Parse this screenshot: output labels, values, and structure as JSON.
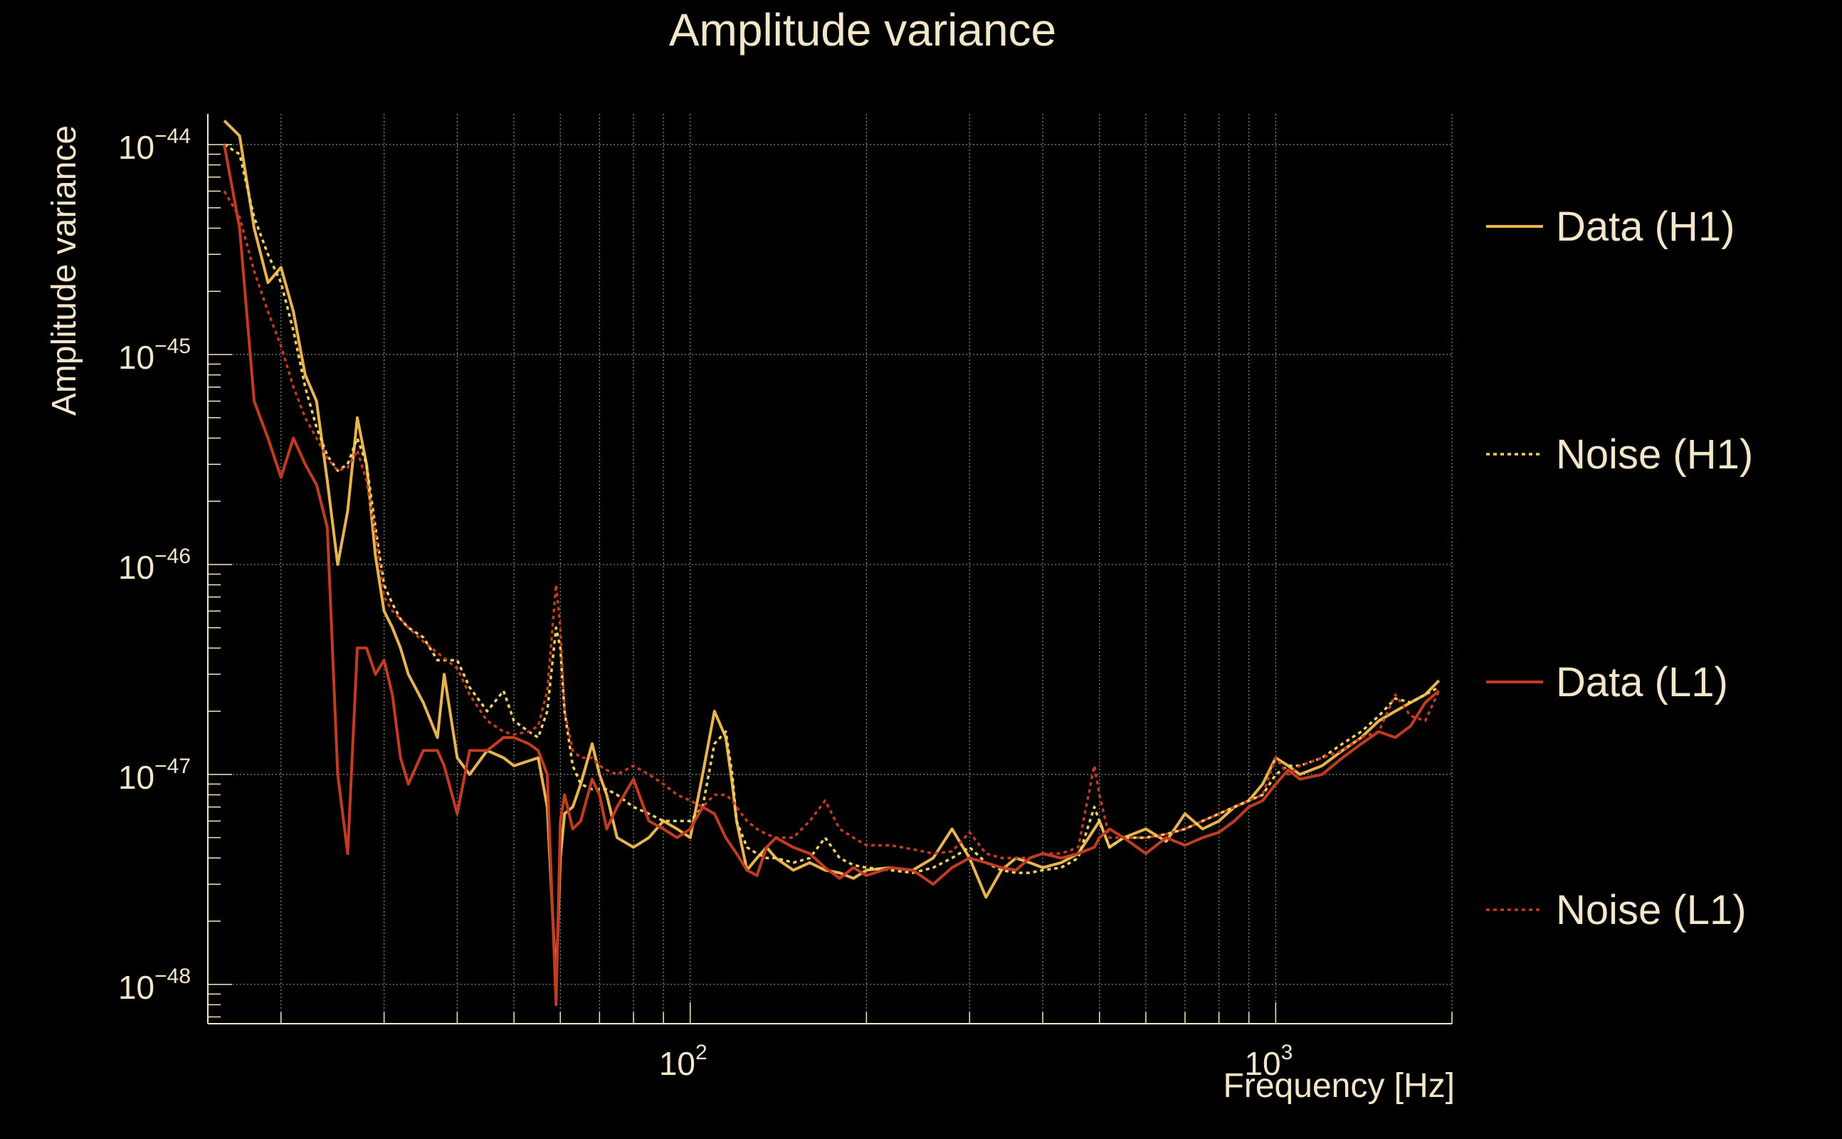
{
  "colors": {
    "background": "#000000",
    "text": "#f3e6cb",
    "grid": "#8a8a8a",
    "axis": "#f3e6cb",
    "data_h1": "#e8b44f",
    "noise_h1": "#f2d062",
    "data_l1": "#c23b22",
    "noise_l1": "#c23b22"
  },
  "chart_data": {
    "type": "line",
    "title": "Amplitude variance",
    "xlabel": "Frequency [Hz]",
    "ylabel": "Amplitude variance",
    "xscale": "log",
    "yscale": "log",
    "xlim": [
      15,
      2000
    ],
    "ylim": [
      6.5e-49,
      1.4e-44
    ],
    "x_major_ticks": [
      {
        "value": 100,
        "base": "10",
        "exp": "2"
      },
      {
        "value": 1000,
        "base": "10",
        "exp": "3"
      }
    ],
    "y_major_ticks": [
      {
        "value": 1e-48,
        "base": "10",
        "exp": "−48"
      },
      {
        "value": 1e-47,
        "base": "10",
        "exp": "−47"
      },
      {
        "value": 1e-46,
        "base": "10",
        "exp": "−46"
      },
      {
        "value": 1e-45,
        "base": "10",
        "exp": "−45"
      },
      {
        "value": 1e-44,
        "base": "10",
        "exp": "−44"
      }
    ],
    "grid": true,
    "legend_position": "right",
    "series": [
      {
        "name": "Data (H1)",
        "style": "solid",
        "color_key": "data_h1",
        "x": [
          16,
          17,
          18,
          19,
          20,
          21,
          22,
          23,
          24,
          25,
          26,
          27,
          28,
          29,
          30,
          31,
          32,
          33,
          35,
          37,
          38,
          40,
          42,
          45,
          48,
          50,
          55,
          57,
          59,
          60,
          61,
          63,
          65,
          68,
          70,
          72,
          75,
          80,
          85,
          90,
          95,
          100,
          105,
          110,
          115,
          118,
          120,
          125,
          130,
          135,
          140,
          150,
          160,
          170,
          180,
          190,
          200,
          220,
          240,
          260,
          280,
          300,
          320,
          340,
          360,
          380,
          400,
          430,
          460,
          490,
          500,
          520,
          550,
          600,
          650,
          700,
          750,
          800,
          850,
          900,
          950,
          1000,
          1050,
          1100,
          1200,
          1300,
          1400,
          1500,
          1600,
          1700,
          1800,
          1900
        ],
        "y": [
          1.3e-44,
          1.1e-44,
          4e-45,
          2.2e-45,
          2.6e-45,
          1.6e-45,
          8e-46,
          6e-46,
          2.5e-46,
          1e-46,
          1.8e-46,
          5e-46,
          3e-46,
          1.1e-46,
          6e-47,
          5e-47,
          4e-47,
          3e-47,
          2.2e-47,
          1.5e-47,
          3e-47,
          1.2e-47,
          1e-47,
          1.3e-47,
          1.2e-47,
          1.1e-47,
          1.2e-47,
          7e-48,
          1e-48,
          4e-48,
          6.5e-48,
          7e-48,
          9e-48,
          1.4e-47,
          1e-47,
          8e-48,
          5e-48,
          4.5e-48,
          5e-48,
          6e-48,
          5.5e-48,
          5e-48,
          1e-47,
          2e-47,
          1.5e-47,
          9e-48,
          6e-48,
          3.5e-48,
          4e-48,
          4.5e-48,
          4e-48,
          3.5e-48,
          3.8e-48,
          3.5e-48,
          3.4e-48,
          3.2e-48,
          3.5e-48,
          3.6e-48,
          3.5e-48,
          4e-48,
          5.5e-48,
          4e-48,
          2.6e-48,
          3.5e-48,
          4e-48,
          3.8e-48,
          3.6e-48,
          3.8e-48,
          4.2e-48,
          5.5e-48,
          6e-48,
          4.5e-48,
          5e-48,
          5.5e-48,
          4.8e-48,
          6.5e-48,
          5.5e-48,
          6e-48,
          7e-48,
          7.5e-48,
          9e-48,
          1.2e-47,
          1.1e-47,
          1e-47,
          1.1e-47,
          1.3e-47,
          1.5e-47,
          1.8e-47,
          2e-47,
          2.2e-47,
          2.4e-47,
          2.8e-47
        ]
      },
      {
        "name": "Noise (H1)",
        "style": "dotted",
        "color_key": "noise_h1",
        "x": [
          16,
          17,
          18,
          19,
          20,
          21,
          22,
          23,
          24,
          25,
          26,
          27,
          28,
          29,
          30,
          31,
          32,
          33,
          35,
          37,
          40,
          42,
          45,
          48,
          50,
          53,
          55,
          57,
          59,
          60,
          61,
          63,
          65,
          68,
          70,
          72,
          75,
          80,
          85,
          90,
          95,
          100,
          105,
          110,
          115,
          118,
          120,
          125,
          130,
          135,
          140,
          150,
          160,
          170,
          180,
          190,
          200,
          220,
          240,
          260,
          280,
          300,
          320,
          340,
          360,
          380,
          400,
          430,
          460,
          490,
          500,
          520,
          550,
          600,
          650,
          700,
          750,
          800,
          850,
          900,
          950,
          1000,
          1050,
          1100,
          1200,
          1300,
          1400,
          1500,
          1600,
          1700,
          1800,
          1900
        ],
        "y": [
          1e-44,
          9e-45,
          4.5e-45,
          3e-45,
          2.2e-45,
          1.3e-45,
          7e-46,
          4.5e-46,
          3.3e-46,
          2.8e-46,
          3e-46,
          4e-46,
          3e-46,
          1.5e-46,
          8e-47,
          6.5e-47,
          5.5e-47,
          5e-47,
          4.5e-47,
          3.5e-47,
          3.5e-47,
          2.6e-47,
          2e-47,
          2.5e-47,
          1.8e-47,
          1.6e-47,
          1.5e-47,
          2e-47,
          5e-47,
          4e-47,
          2e-47,
          1.1e-47,
          9e-48,
          8.5e-48,
          8.5e-48,
          8.5e-48,
          8e-48,
          7e-48,
          6.5e-48,
          6e-48,
          6e-48,
          6e-48,
          7e-48,
          1.4e-47,
          1.6e-47,
          1e-47,
          6e-48,
          4.5e-48,
          4.2e-48,
          4e-48,
          4e-48,
          3.8e-48,
          4e-48,
          5e-48,
          4e-48,
          3.7e-48,
          3.6e-48,
          3.5e-48,
          3.4e-48,
          3.6e-48,
          4e-48,
          4.5e-48,
          3.8e-48,
          3.5e-48,
          3.4e-48,
          3.4e-48,
          3.5e-48,
          3.6e-48,
          4e-48,
          7e-48,
          6e-48,
          4.5e-48,
          5e-48,
          5e-48,
          5.2e-48,
          5.5e-48,
          6e-48,
          6.5e-48,
          7e-48,
          7.5e-48,
          8e-48,
          1e-47,
          1.1e-47,
          1.1e-47,
          1.2e-47,
          1.4e-47,
          1.6e-47,
          1.9e-47,
          2.3e-47,
          2.2e-47,
          2.4e-47,
          2.6e-47
        ]
      },
      {
        "name": "Data (L1)",
        "style": "solid",
        "color_key": "data_l1",
        "x": [
          16,
          17,
          18,
          19,
          20,
          21,
          22,
          23,
          24,
          25,
          26,
          27,
          28,
          29,
          30,
          31,
          32,
          33,
          35,
          37,
          38,
          40,
          42,
          45,
          48,
          50,
          53,
          55,
          57,
          59,
          60,
          61,
          63,
          65,
          68,
          70,
          72,
          75,
          80,
          85,
          90,
          95,
          100,
          105,
          110,
          115,
          118,
          120,
          125,
          130,
          135,
          140,
          150,
          160,
          170,
          180,
          190,
          200,
          220,
          240,
          260,
          280,
          300,
          320,
          340,
          360,
          380,
          400,
          430,
          460,
          490,
          500,
          520,
          550,
          600,
          650,
          700,
          750,
          800,
          850,
          900,
          950,
          1000,
          1050,
          1100,
          1200,
          1300,
          1400,
          1500,
          1600,
          1700,
          1800,
          1900
        ],
        "y": [
          1e-44,
          4e-45,
          6e-46,
          4e-46,
          2.6e-46,
          4e-46,
          3e-46,
          2.4e-46,
          1.5e-46,
          1e-47,
          4.2e-48,
          4e-47,
          4e-47,
          3e-47,
          3.5e-47,
          2.4e-47,
          1.2e-47,
          9e-48,
          1.3e-47,
          1.3e-47,
          1.1e-47,
          6.5e-48,
          1.3e-47,
          1.3e-47,
          1.5e-47,
          1.5e-47,
          1.4e-47,
          1.3e-47,
          1e-47,
          8e-49,
          6e-48,
          8e-48,
          5.5e-48,
          6e-48,
          9.5e-48,
          8e-48,
          5.5e-48,
          7e-48,
          9.5e-48,
          6e-48,
          5.5e-48,
          5e-48,
          5.5e-48,
          7e-48,
          6.5e-48,
          5e-48,
          4.5e-48,
          4.2e-48,
          3.5e-48,
          3.3e-48,
          4.5e-48,
          5e-48,
          4.5e-48,
          4.2e-48,
          3.6e-48,
          3.2e-48,
          3.6e-48,
          3.3e-48,
          3.6e-48,
          3.5e-48,
          3e-48,
          3.6e-48,
          4e-48,
          3.8e-48,
          3.6e-48,
          3.5e-48,
          4e-48,
          4.2e-48,
          4e-48,
          4.2e-48,
          4.5e-48,
          5e-48,
          5.5e-48,
          5e-48,
          4.2e-48,
          5e-48,
          4.6e-48,
          5e-48,
          5.3e-48,
          6e-48,
          7e-48,
          7.5e-48,
          9e-48,
          1.05e-47,
          9.5e-48,
          1e-47,
          1.2e-47,
          1.4e-47,
          1.6e-47,
          1.5e-47,
          1.7e-47,
          2.2e-47,
          2.5e-47
        ]
      },
      {
        "name": "Noise (L1)",
        "style": "dotted",
        "color_key": "noise_l1",
        "x": [
          16,
          17,
          18,
          19,
          20,
          21,
          22,
          23,
          24,
          25,
          26,
          27,
          28,
          29,
          30,
          31,
          32,
          33,
          35,
          37,
          40,
          42,
          45,
          48,
          50,
          53,
          55,
          57,
          59,
          60,
          61,
          63,
          65,
          68,
          70,
          72,
          75,
          80,
          85,
          90,
          95,
          100,
          105,
          110,
          115,
          118,
          120,
          125,
          130,
          135,
          140,
          150,
          160,
          170,
          180,
          190,
          200,
          220,
          240,
          260,
          280,
          300,
          320,
          340,
          360,
          380,
          400,
          430,
          460,
          490,
          500,
          520,
          550,
          600,
          650,
          700,
          750,
          800,
          850,
          900,
          950,
          1000,
          1050,
          1100,
          1200,
          1300,
          1400,
          1500,
          1600,
          1700,
          1800,
          1900
        ],
        "y": [
          6e-45,
          4.5e-45,
          2.5e-45,
          1.6e-45,
          1.1e-45,
          7e-46,
          5e-46,
          4e-46,
          3.2e-46,
          2.8e-46,
          2.9e-46,
          3.5e-46,
          2.5e-46,
          1.4e-46,
          7e-47,
          6e-47,
          5.5e-47,
          5e-47,
          4.3e-47,
          3.8e-47,
          3.2e-47,
          2.4e-47,
          1.8e-47,
          1.6e-47,
          1.55e-47,
          1.6e-47,
          1.7e-47,
          2.5e-47,
          8e-47,
          5e-47,
          2e-47,
          1.3e-47,
          1.2e-47,
          1.2e-47,
          1.1e-47,
          1.05e-47,
          1e-47,
          1.1e-47,
          1e-47,
          9e-48,
          8e-48,
          7.5e-48,
          7e-48,
          8e-48,
          8e-48,
          7.5e-48,
          7e-48,
          6e-48,
          5.5e-48,
          5.2e-48,
          5e-48,
          5e-48,
          6e-48,
          7.5e-48,
          5.5e-48,
          5e-48,
          4.6e-48,
          4.6e-48,
          4.4e-48,
          4.2e-48,
          4.3e-48,
          5.3e-48,
          4.2e-48,
          4e-48,
          4e-48,
          4e-48,
          4.2e-48,
          4.2e-48,
          4.5e-48,
          1.1e-47,
          8e-48,
          5e-48,
          5e-48,
          5e-48,
          5.2e-48,
          5.5e-48,
          6e-48,
          6.5e-48,
          7e-48,
          7.5e-48,
          8e-48,
          1.2e-47,
          1e-47,
          1.1e-47,
          1.2e-47,
          1.3e-47,
          1.5e-47,
          1.6e-47,
          2.4e-47,
          1.9e-47,
          1.8e-47,
          2.5e-47
        ]
      }
    ]
  }
}
